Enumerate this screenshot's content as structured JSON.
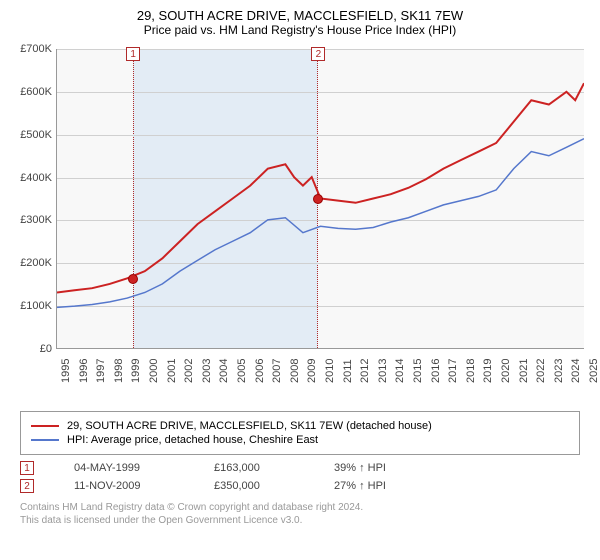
{
  "title": "29, SOUTH ACRE DRIVE, MACCLESFIELD, SK11 7EW",
  "subtitle": "Price paid vs. HM Land Registry's House Price Index (HPI)",
  "chart": {
    "type": "line",
    "background_color": "#f8f8f8",
    "grid_color": "#d0d0d0",
    "shaded_color": "#e3ecf5",
    "shaded_border_color": "#b02a2a",
    "ylim": [
      0,
      700000
    ],
    "yticks": [
      "£0",
      "£100K",
      "£200K",
      "£300K",
      "£400K",
      "£500K",
      "£600K",
      "£700K"
    ],
    "xrange": [
      1995,
      2025
    ],
    "xticks": [
      1995,
      1996,
      1997,
      1998,
      1999,
      2000,
      2001,
      2002,
      2003,
      2004,
      2005,
      2006,
      2007,
      2008,
      2009,
      2010,
      2011,
      2012,
      2013,
      2014,
      2015,
      2016,
      2017,
      2018,
      2019,
      2020,
      2021,
      2022,
      2023,
      2024,
      2025
    ],
    "shaded_start": 1999.3,
    "shaded_end": 2009.85,
    "series_red": {
      "color": "#cc2222",
      "line_width": 2,
      "label": "29, SOUTH ACRE DRIVE, MACCLESFIELD, SK11 7EW (detached house)",
      "data_x": [
        1995,
        1996,
        1997,
        1998,
        1999,
        2000,
        2001,
        2002,
        2003,
        2004,
        2005,
        2006,
        2007,
        2008,
        2008.5,
        2009,
        2009.5,
        2010,
        2011,
        2012,
        2013,
        2014,
        2015,
        2016,
        2017,
        2018,
        2019,
        2020,
        2021,
        2022,
        2023,
        2024,
        2024.5,
        2025
      ],
      "data_y": [
        130000,
        135000,
        140000,
        150000,
        163000,
        180000,
        210000,
        250000,
        290000,
        320000,
        350000,
        380000,
        420000,
        430000,
        400000,
        380000,
        400000,
        350000,
        345000,
        340000,
        350000,
        360000,
        375000,
        395000,
        420000,
        440000,
        460000,
        480000,
        530000,
        580000,
        570000,
        600000,
        580000,
        620000
      ]
    },
    "series_blue": {
      "color": "#5577cc",
      "line_width": 1.5,
      "label": "HPI: Average price, detached house, Cheshire East",
      "data_x": [
        1995,
        1996,
        1997,
        1998,
        1999,
        2000,
        2001,
        2002,
        2003,
        2004,
        2005,
        2006,
        2007,
        2008,
        2009,
        2010,
        2011,
        2012,
        2013,
        2014,
        2015,
        2016,
        2017,
        2018,
        2019,
        2020,
        2021,
        2022,
        2023,
        2024,
        2025
      ],
      "data_y": [
        95000,
        98000,
        102000,
        108000,
        117000,
        130000,
        150000,
        180000,
        205000,
        230000,
        250000,
        270000,
        300000,
        305000,
        270000,
        285000,
        280000,
        278000,
        282000,
        295000,
        305000,
        320000,
        335000,
        345000,
        355000,
        370000,
        420000,
        460000,
        450000,
        470000,
        490000
      ]
    },
    "markers": [
      {
        "n": "1",
        "x": 1999.33
      },
      {
        "n": "2",
        "x": 2009.85
      }
    ],
    "sale_points": [
      {
        "x": 1999.33,
        "y": 163000
      },
      {
        "x": 2009.85,
        "y": 350000
      }
    ]
  },
  "sales": [
    {
      "n": "1",
      "date": "04-MAY-1999",
      "price": "£163,000",
      "hpi": "39% ↑ HPI"
    },
    {
      "n": "2",
      "date": "11-NOV-2009",
      "price": "£350,000",
      "hpi": "27% ↑ HPI"
    }
  ],
  "footer1": "Contains HM Land Registry data © Crown copyright and database right 2024.",
  "footer2": "This data is licensed under the Open Government Licence v3.0."
}
